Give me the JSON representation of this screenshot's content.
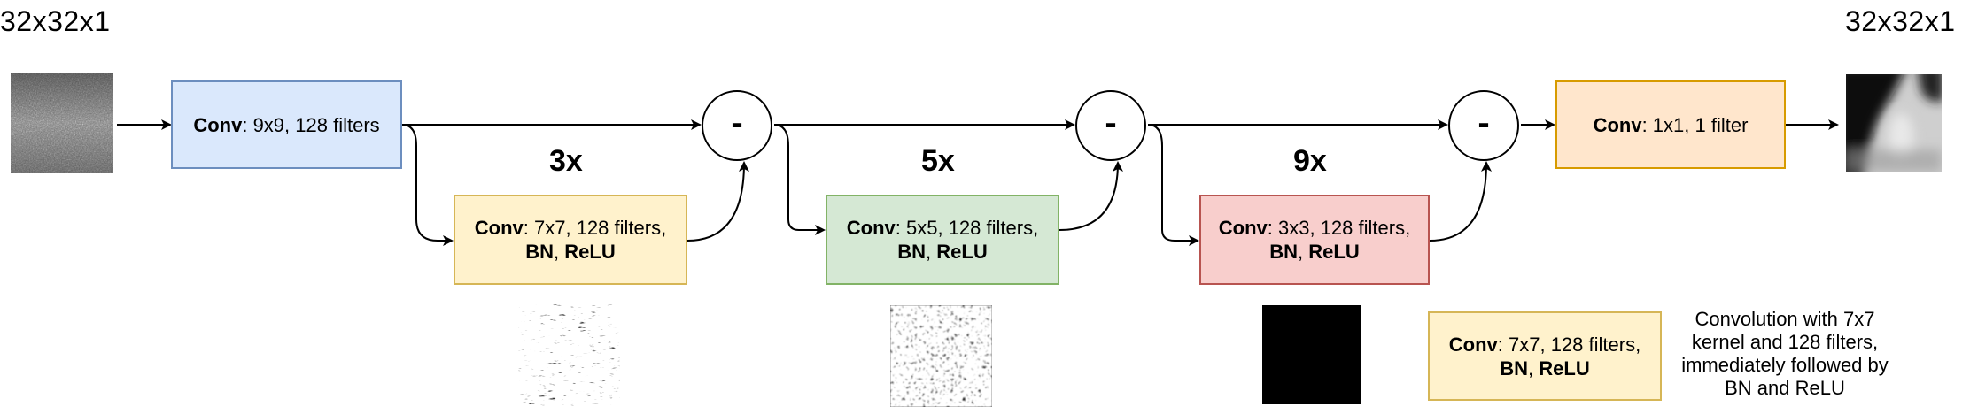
{
  "input_dim": "32x32x1",
  "output_dim": "32x32x1",
  "conv_first": {
    "name": "Conv",
    "rest": ":  9x9, 128 filters"
  },
  "blocks": [
    {
      "repeat": "3x",
      "name": "Conv",
      "rest": ":  7x7, 128 filters,",
      "bn": "BN",
      "sep": ", ",
      "relu": "ReLU"
    },
    {
      "repeat": "5x",
      "name": "Conv",
      "rest": ":  5x5, 128 filters,",
      "bn": "BN",
      "sep": ", ",
      "relu": "ReLU"
    },
    {
      "repeat": "9x",
      "name": "Conv",
      "rest": ":  3x3, 128 filters,",
      "bn": "BN",
      "sep": ", ",
      "relu": "ReLU"
    }
  ],
  "subtract_symbol": "-",
  "conv_last": {
    "name": "Conv",
    "rest": ": 1x1, 1 filter"
  },
  "legend": {
    "name": "Conv",
    "rest": ":  7x7, 128 filters,",
    "bn": "BN",
    "sep": ", ",
    "relu": "ReLU",
    "caption_lines": [
      "Convolution with 7x7",
      "kernel and 128 filters,",
      "immediately followed by",
      "BN and ReLU"
    ]
  },
  "colors": {
    "conv_first": "#dae8fc",
    "block1": "#fff2cc",
    "block2": "#d5e8d4",
    "block3": "#f8cecc",
    "conv_last": "#ffe6cc"
  }
}
